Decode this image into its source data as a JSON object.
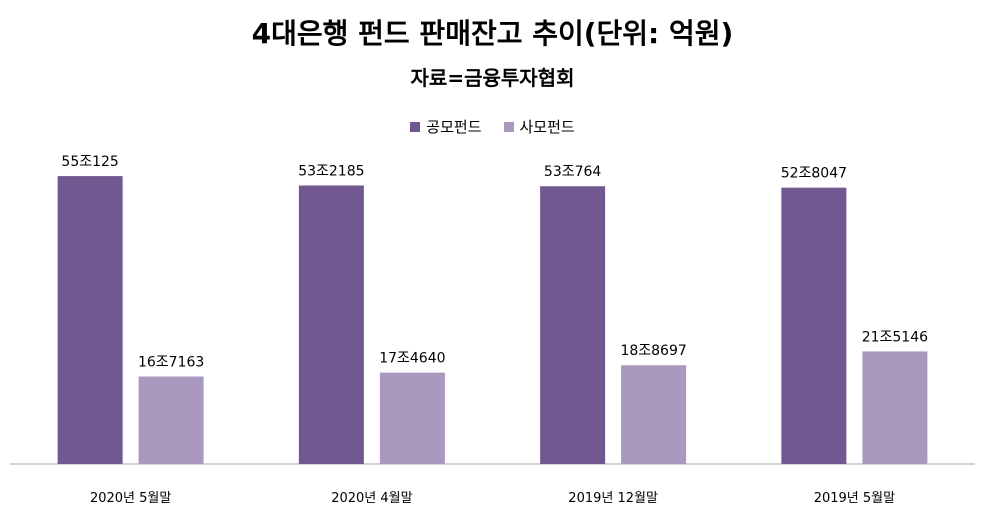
{
  "chart_data": {
    "type": "bar",
    "title": "4대은행 펀드 판매잔고 추이(단위: 억원)",
    "subtitle": "자료=금융투자협회",
    "categories": [
      "2020년 5월말",
      "2020년 4월말",
      "2019년 12월말",
      "2019년 5월말"
    ],
    "series": [
      {
        "name": "공모펀드",
        "color": "#725890",
        "values": [
          550125,
          532185,
          530764,
          528047
        ],
        "labels": [
          "55조125",
          "53조2185",
          "53조764",
          "52조8047"
        ]
      },
      {
        "name": "사모펀드",
        "color": "#a999bf",
        "values": [
          167163,
          174640,
          188697,
          215146
        ],
        "labels": [
          "16조7163",
          "17조4640",
          "18조8697",
          "21조5146"
        ]
      }
    ],
    "ylim": [
      0,
      600000
    ],
    "grid": false,
    "legend_position": "top"
  }
}
